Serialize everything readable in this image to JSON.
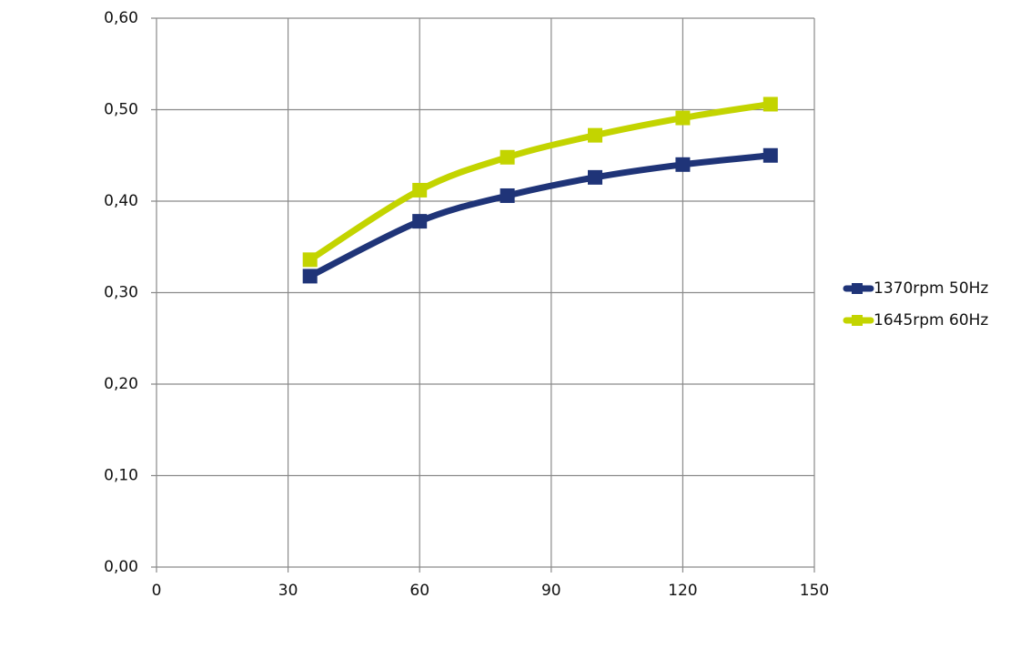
{
  "chart_data": {
    "type": "line",
    "x": [
      35,
      60,
      80,
      100,
      120,
      140
    ],
    "series": [
      {
        "name": "1370rpm 50Hz",
        "color": "#1f3478",
        "values": [
          0.318,
          0.378,
          0.406,
          0.426,
          0.44,
          0.45
        ]
      },
      {
        "name": "1645rpm 60Hz",
        "color": "#c3d400",
        "values": [
          0.336,
          0.412,
          0.448,
          0.472,
          0.491,
          0.506
        ]
      }
    ],
    "xlim": [
      0,
      150
    ],
    "xticks": [
      0,
      30,
      60,
      90,
      120,
      150
    ],
    "ylim": [
      0,
      0.6
    ],
    "yticks": [
      {
        "value": 0,
        "label": "0,00"
      },
      {
        "value": 0.1,
        "label": "0,10"
      },
      {
        "value": 0.2,
        "label": "0,20"
      },
      {
        "value": 0.3,
        "label": "0,30"
      },
      {
        "value": 0.4,
        "label": "0,40"
      },
      {
        "value": 0.5,
        "label": "0,50"
      },
      {
        "value": 0.6,
        "label": "0,60"
      }
    ],
    "grid": true,
    "legend": "right"
  }
}
